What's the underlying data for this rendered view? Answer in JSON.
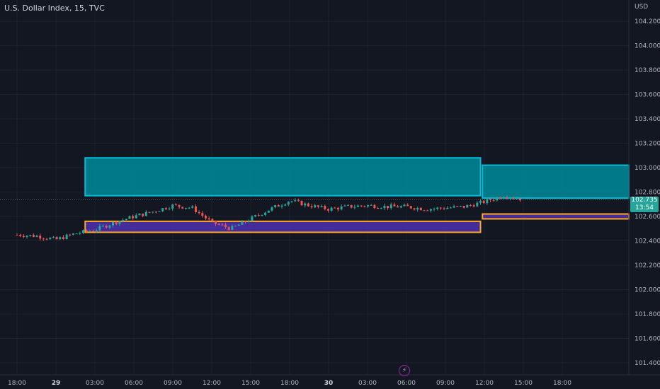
{
  "header": {
    "title": "U.S. Dollar Index, 15, TVC"
  },
  "price_axis": {
    "currency_label": "USD"
  },
  "current_price": {
    "value": "102.735",
    "countdown": "13:54"
  },
  "markers": {
    "events_icon": "lightning-bolt-icon"
  },
  "colors": {
    "background": "#131722",
    "grid": "#1e222d",
    "up": "#26a69a",
    "down": "#ef5350",
    "supply_zone_fill": "#008b9a",
    "supply_zone_border": "#00bcd4",
    "demand_zone_fill": "#4b2fa8",
    "demand_zone_border": "#ffa726"
  },
  "chart_data": {
    "type": "candlestick",
    "y_ticks": [
      "104.200",
      "104.000",
      "103.800",
      "103.600",
      "103.400",
      "103.200",
      "103.000",
      "102.800",
      "102.600",
      "102.400",
      "102.200",
      "102.000",
      "101.800",
      "101.600",
      "101.400"
    ],
    "x_ticks": [
      "18:00",
      "29",
      "03:00",
      "06:00",
      "09:00",
      "12:00",
      "15:00",
      "18:00",
      "30",
      "03:00",
      "06:00",
      "09:00",
      "12:00",
      "15:00",
      "18:00"
    ],
    "ylim": [
      101.3,
      104.35
    ],
    "grid": true,
    "zones": [
      {
        "kind": "supply",
        "x_start": 1.75,
        "x_end": 11.9,
        "y_top": 103.08,
        "y_bottom": 102.77
      },
      {
        "kind": "supply",
        "x_start": 11.95,
        "x_end": 16.2,
        "y_top": 103.02,
        "y_bottom": 102.75
      },
      {
        "kind": "demand",
        "x_start": 1.75,
        "x_end": 11.9,
        "y_top": 102.56,
        "y_bottom": 102.47
      },
      {
        "kind": "demand",
        "x_start": 11.95,
        "x_end": 16.2,
        "y_top": 102.62,
        "y_bottom": 102.58
      }
    ],
    "close_path": [
      [
        0,
        102.45
      ],
      [
        0.5,
        102.44
      ],
      [
        1.0,
        102.41
      ],
      [
        1.5,
        102.46
      ],
      [
        2.0,
        102.49
      ],
      [
        2.5,
        102.55
      ],
      [
        3.0,
        102.6
      ],
      [
        3.5,
        102.64
      ],
      [
        4.0,
        102.69
      ],
      [
        4.5,
        102.67
      ],
      [
        5.0,
        102.55
      ],
      [
        5.5,
        102.5
      ],
      [
        6.0,
        102.58
      ],
      [
        6.5,
        102.66
      ],
      [
        7.0,
        102.73
      ],
      [
        7.5,
        102.69
      ],
      [
        8.0,
        102.66
      ],
      [
        8.5,
        102.68
      ],
      [
        9.0,
        102.69
      ],
      [
        9.5,
        102.68
      ],
      [
        10.0,
        102.68
      ],
      [
        10.5,
        102.66
      ],
      [
        11.0,
        102.67
      ],
      [
        11.5,
        102.68
      ],
      [
        12.0,
        102.72
      ],
      [
        12.5,
        102.77
      ],
      [
        13.0,
        102.74
      ]
    ]
  }
}
